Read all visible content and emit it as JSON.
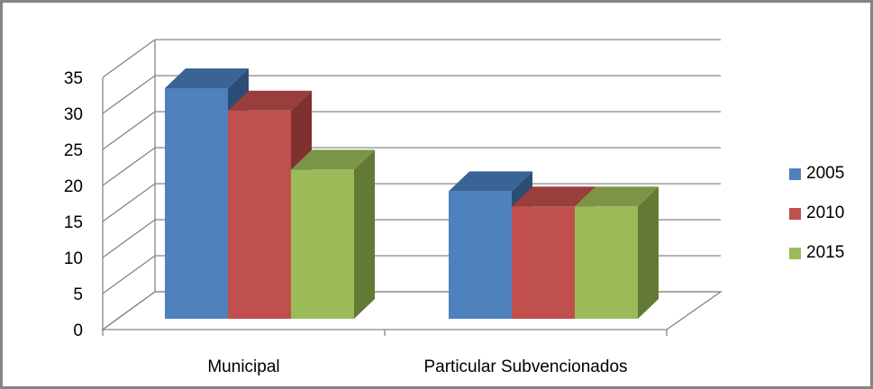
{
  "chart_data": {
    "type": "bar",
    "categories": [
      "Municipal",
      "Particular Subvencionados"
    ],
    "series": [
      {
        "name": "2005",
        "values": [
          33.5,
          19.2
        ],
        "color": "#4F81BD",
        "top_color": "#3A6396",
        "side_color": "#2C4D75"
      },
      {
        "name": "2010",
        "values": [
          30.4,
          17.1
        ],
        "color": "#C0504D",
        "top_color": "#983E3C",
        "side_color": "#7F3130"
      },
      {
        "name": "2015",
        "values": [
          22.2,
          17.1
        ],
        "color": "#9BBB59",
        "top_color": "#7B9445",
        "side_color": "#637A36"
      }
    ],
    "ylim": [
      0,
      35
    ],
    "yticks": [
      "0",
      "5",
      "10",
      "15",
      "20",
      "25",
      "30",
      "35"
    ],
    "grid": true,
    "legend_position": "right",
    "three_d": true
  }
}
